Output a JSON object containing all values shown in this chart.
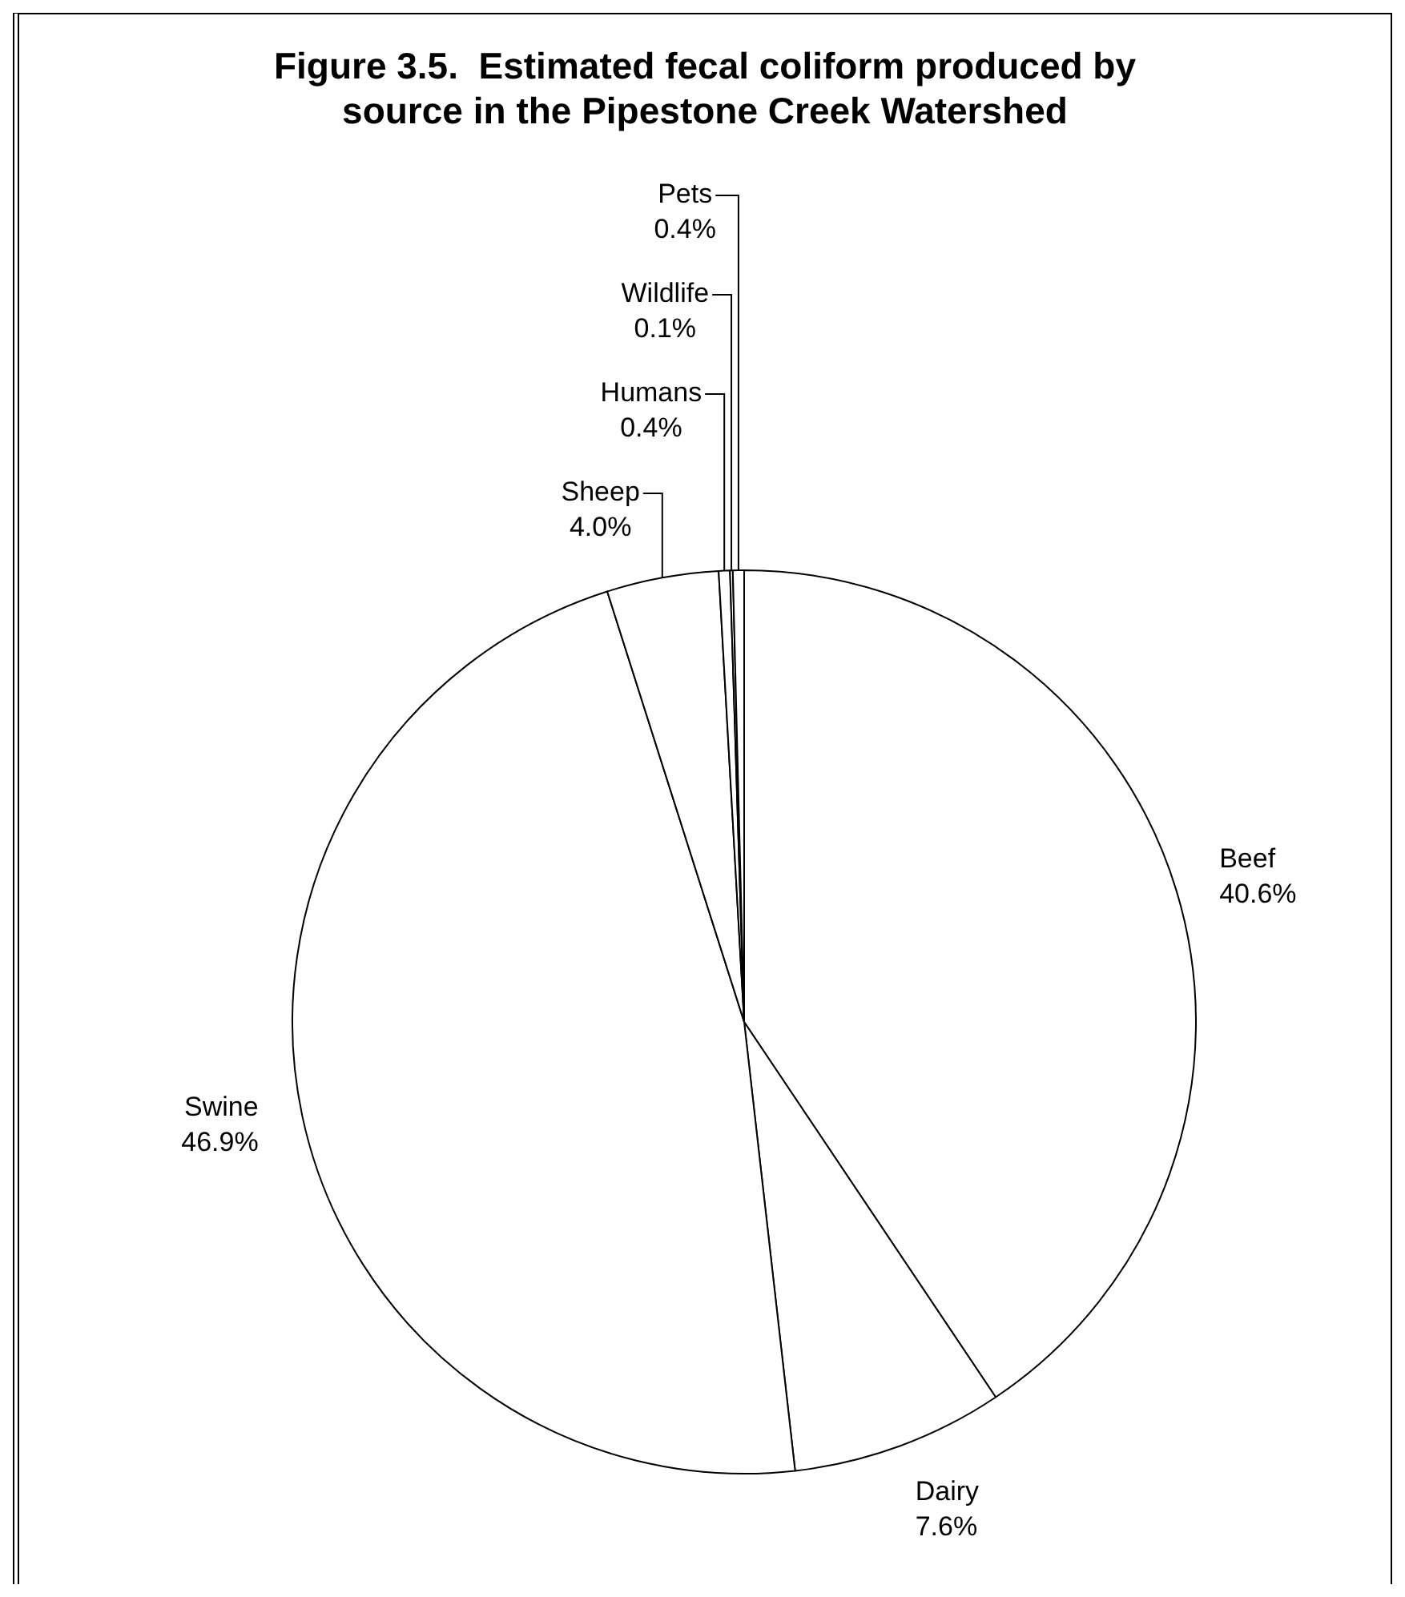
{
  "chart_data": {
    "type": "pie",
    "title": "Figure 3.5.  Estimated fecal coliform produced by source in the Pipestone Creek Watershed",
    "categories": [
      "Beef",
      "Dairy",
      "Swine",
      "Sheep",
      "Humans",
      "Wildlife",
      "Pets"
    ],
    "values": [
      40.6,
      7.6,
      46.9,
      4.0,
      0.4,
      0.1,
      0.4
    ],
    "colors": [
      "#ffffff",
      "#ffffff",
      "#ffffff",
      "#ffffff",
      "#ffffff",
      "#ffffff",
      "#ffffff"
    ],
    "value_labels": [
      "40.6%",
      "7.6%",
      "46.9%",
      "4.0%",
      "0.4%",
      "0.1%",
      "0.4%"
    ]
  }
}
